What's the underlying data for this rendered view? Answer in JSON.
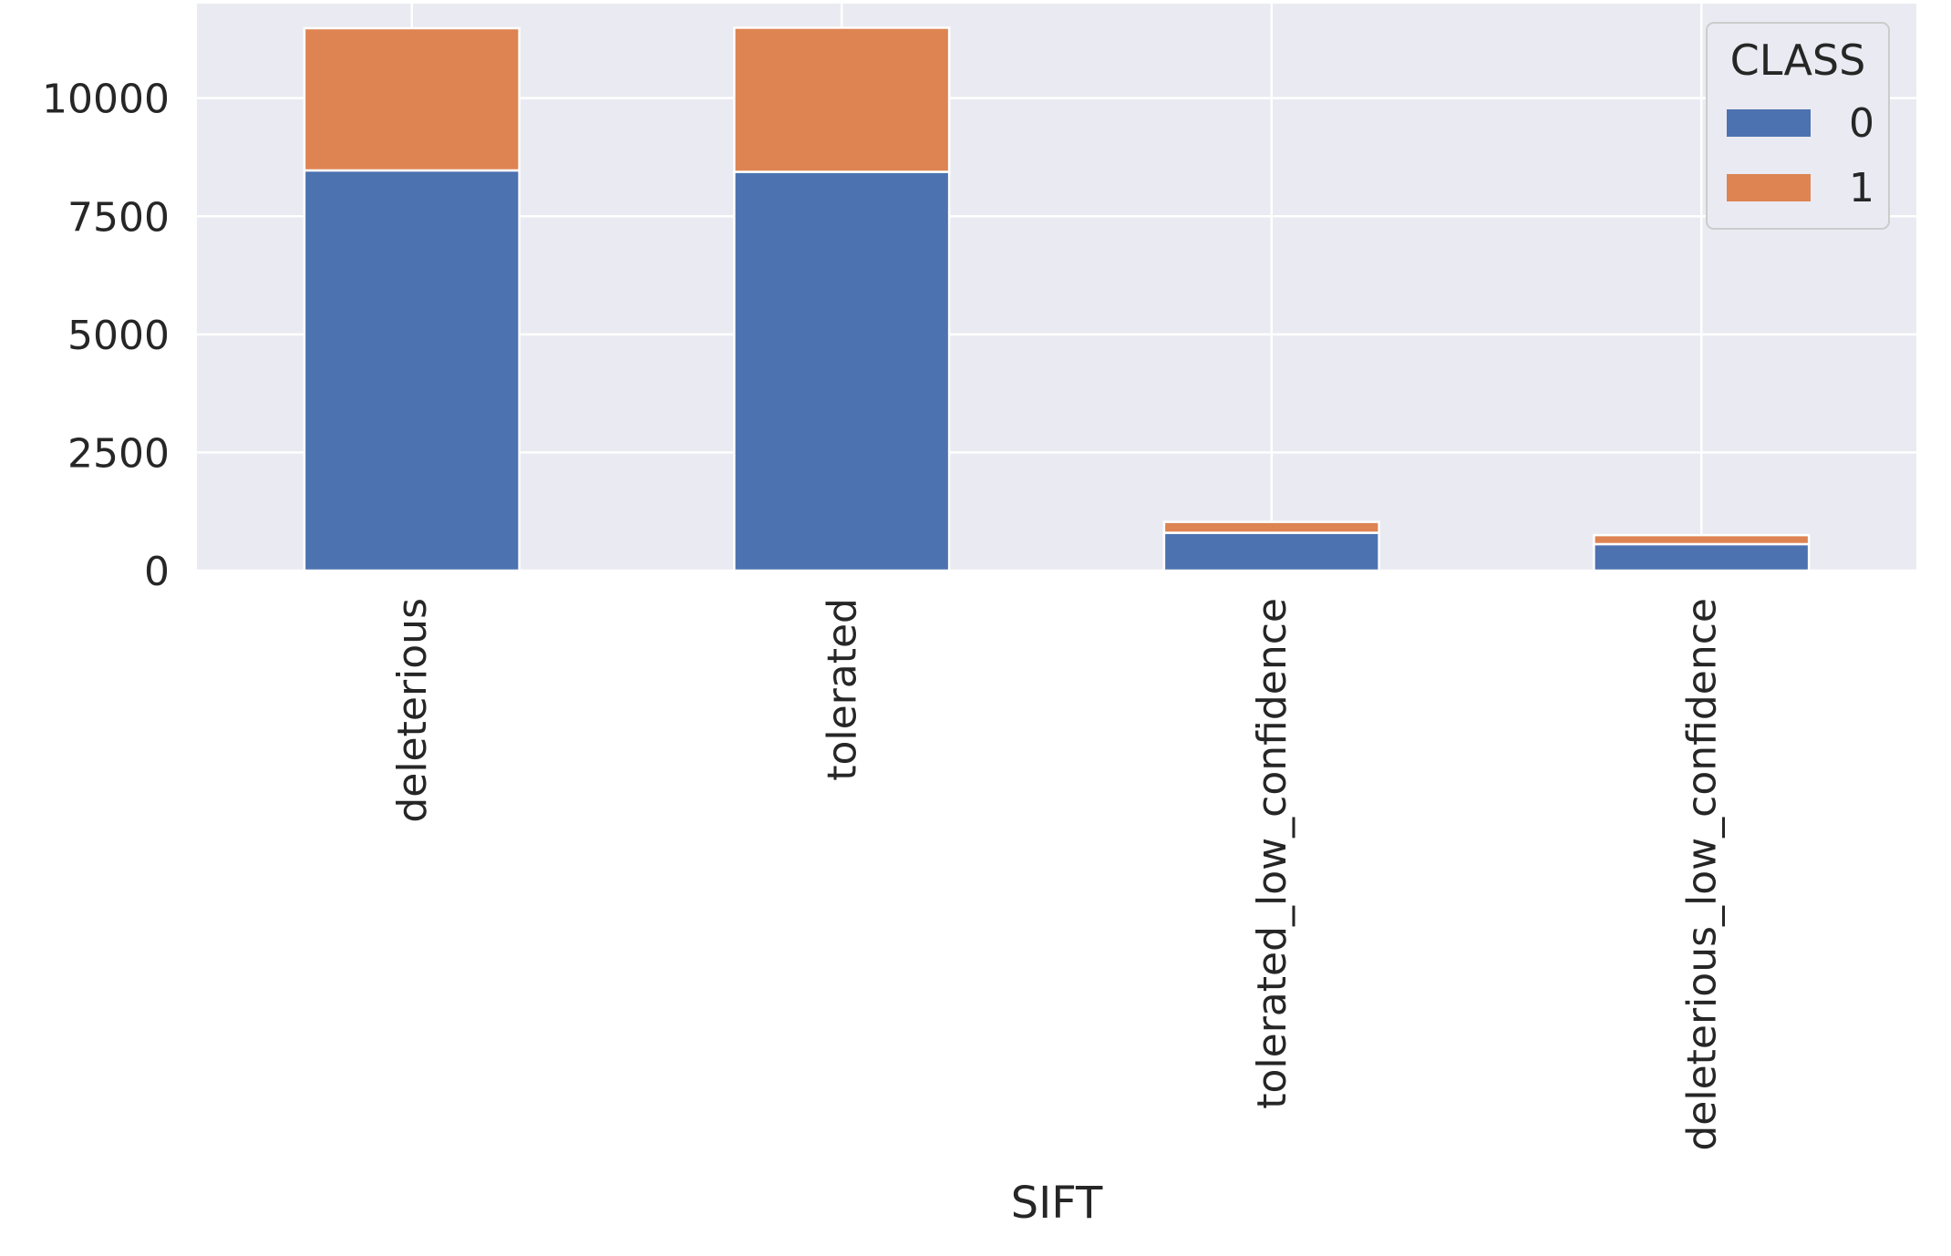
{
  "chart_data": {
    "type": "bar",
    "stacked": true,
    "categories": [
      "deleterious",
      "tolerated",
      "tolerated_low_confidence",
      "deleterious_low_confidence"
    ],
    "series": [
      {
        "name": "0",
        "values": [
          8470,
          8440,
          800,
          560
        ],
        "color": "#4c72b0"
      },
      {
        "name": "1",
        "values": [
          3010,
          3050,
          230,
          190
        ],
        "color": "#dd8452"
      }
    ],
    "xlabel": "SIFT",
    "ylabel": "",
    "ylim": [
      0,
      12000
    ],
    "yticks": [
      0,
      2500,
      5000,
      7500,
      10000
    ],
    "grid": true,
    "legend": {
      "title": "CLASS",
      "position": "top-right"
    },
    "background_color": "#eaeaf2",
    "grid_color": "#ffffff"
  }
}
